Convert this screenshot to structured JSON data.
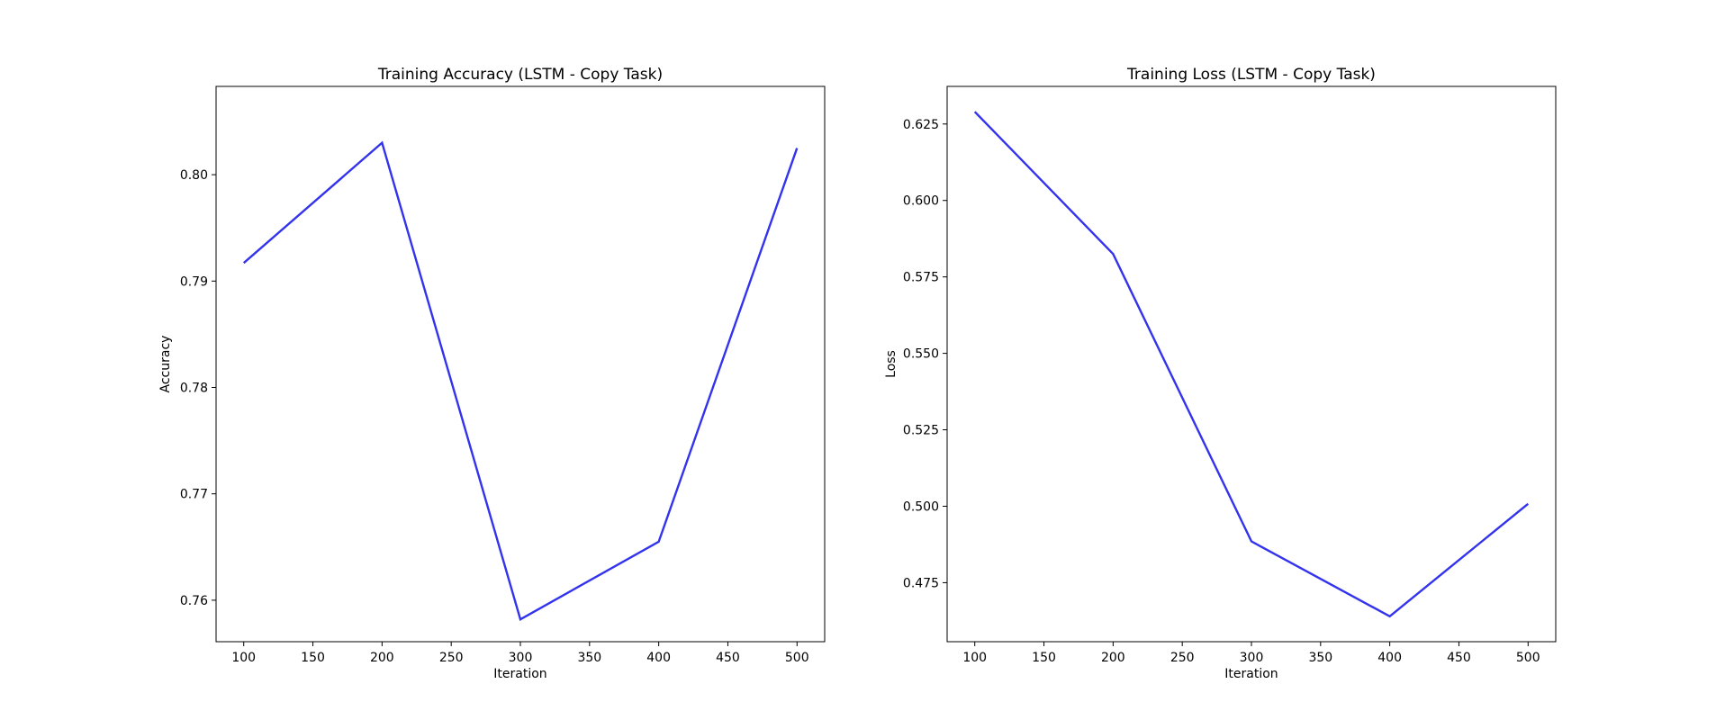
{
  "chart_data": [
    {
      "type": "line",
      "title": "Training Accuracy (LSTM - Copy Task)",
      "xlabel": "Iteration",
      "ylabel": "Accuracy",
      "x": [
        100,
        200,
        300,
        400,
        500
      ],
      "series": [
        {
          "values": [
            0.7917,
            0.803,
            0.7582,
            0.7655,
            0.8025
          ],
          "color": "#3333ee"
        }
      ],
      "xlim": [
        80,
        520
      ],
      "ylim": [
        0.7561,
        0.8083
      ],
      "xticks": [
        100,
        150,
        200,
        250,
        300,
        350,
        400,
        450,
        500
      ],
      "yticks": [
        0.76,
        0.77,
        0.78,
        0.79,
        0.8
      ],
      "xtick_labels": [
        "100",
        "150",
        "200",
        "250",
        "300",
        "350",
        "400",
        "450",
        "500"
      ],
      "ytick_labels": [
        "0.76",
        "0.77",
        "0.78",
        "0.79",
        "0.80"
      ],
      "grid": false
    },
    {
      "type": "line",
      "title": "Training Loss (LSTM - Copy Task)",
      "xlabel": "Iteration",
      "ylabel": "Loss",
      "x": [
        100,
        200,
        300,
        400,
        500
      ],
      "series": [
        {
          "values": [
            0.629,
            0.5825,
            0.4885,
            0.464,
            0.5008
          ],
          "color": "#3333ee"
        }
      ],
      "xlim": [
        80,
        520
      ],
      "ylim": [
        0.4557,
        0.6373
      ],
      "xticks": [
        100,
        150,
        200,
        250,
        300,
        350,
        400,
        450,
        500
      ],
      "yticks": [
        0.475,
        0.5,
        0.525,
        0.55,
        0.575,
        0.6,
        0.625
      ],
      "xtick_labels": [
        "100",
        "150",
        "200",
        "250",
        "300",
        "350",
        "400",
        "450",
        "500"
      ],
      "ytick_labels": [
        "0.475",
        "0.500",
        "0.525",
        "0.550",
        "0.575",
        "0.600",
        "0.625"
      ],
      "grid": false
    }
  ]
}
